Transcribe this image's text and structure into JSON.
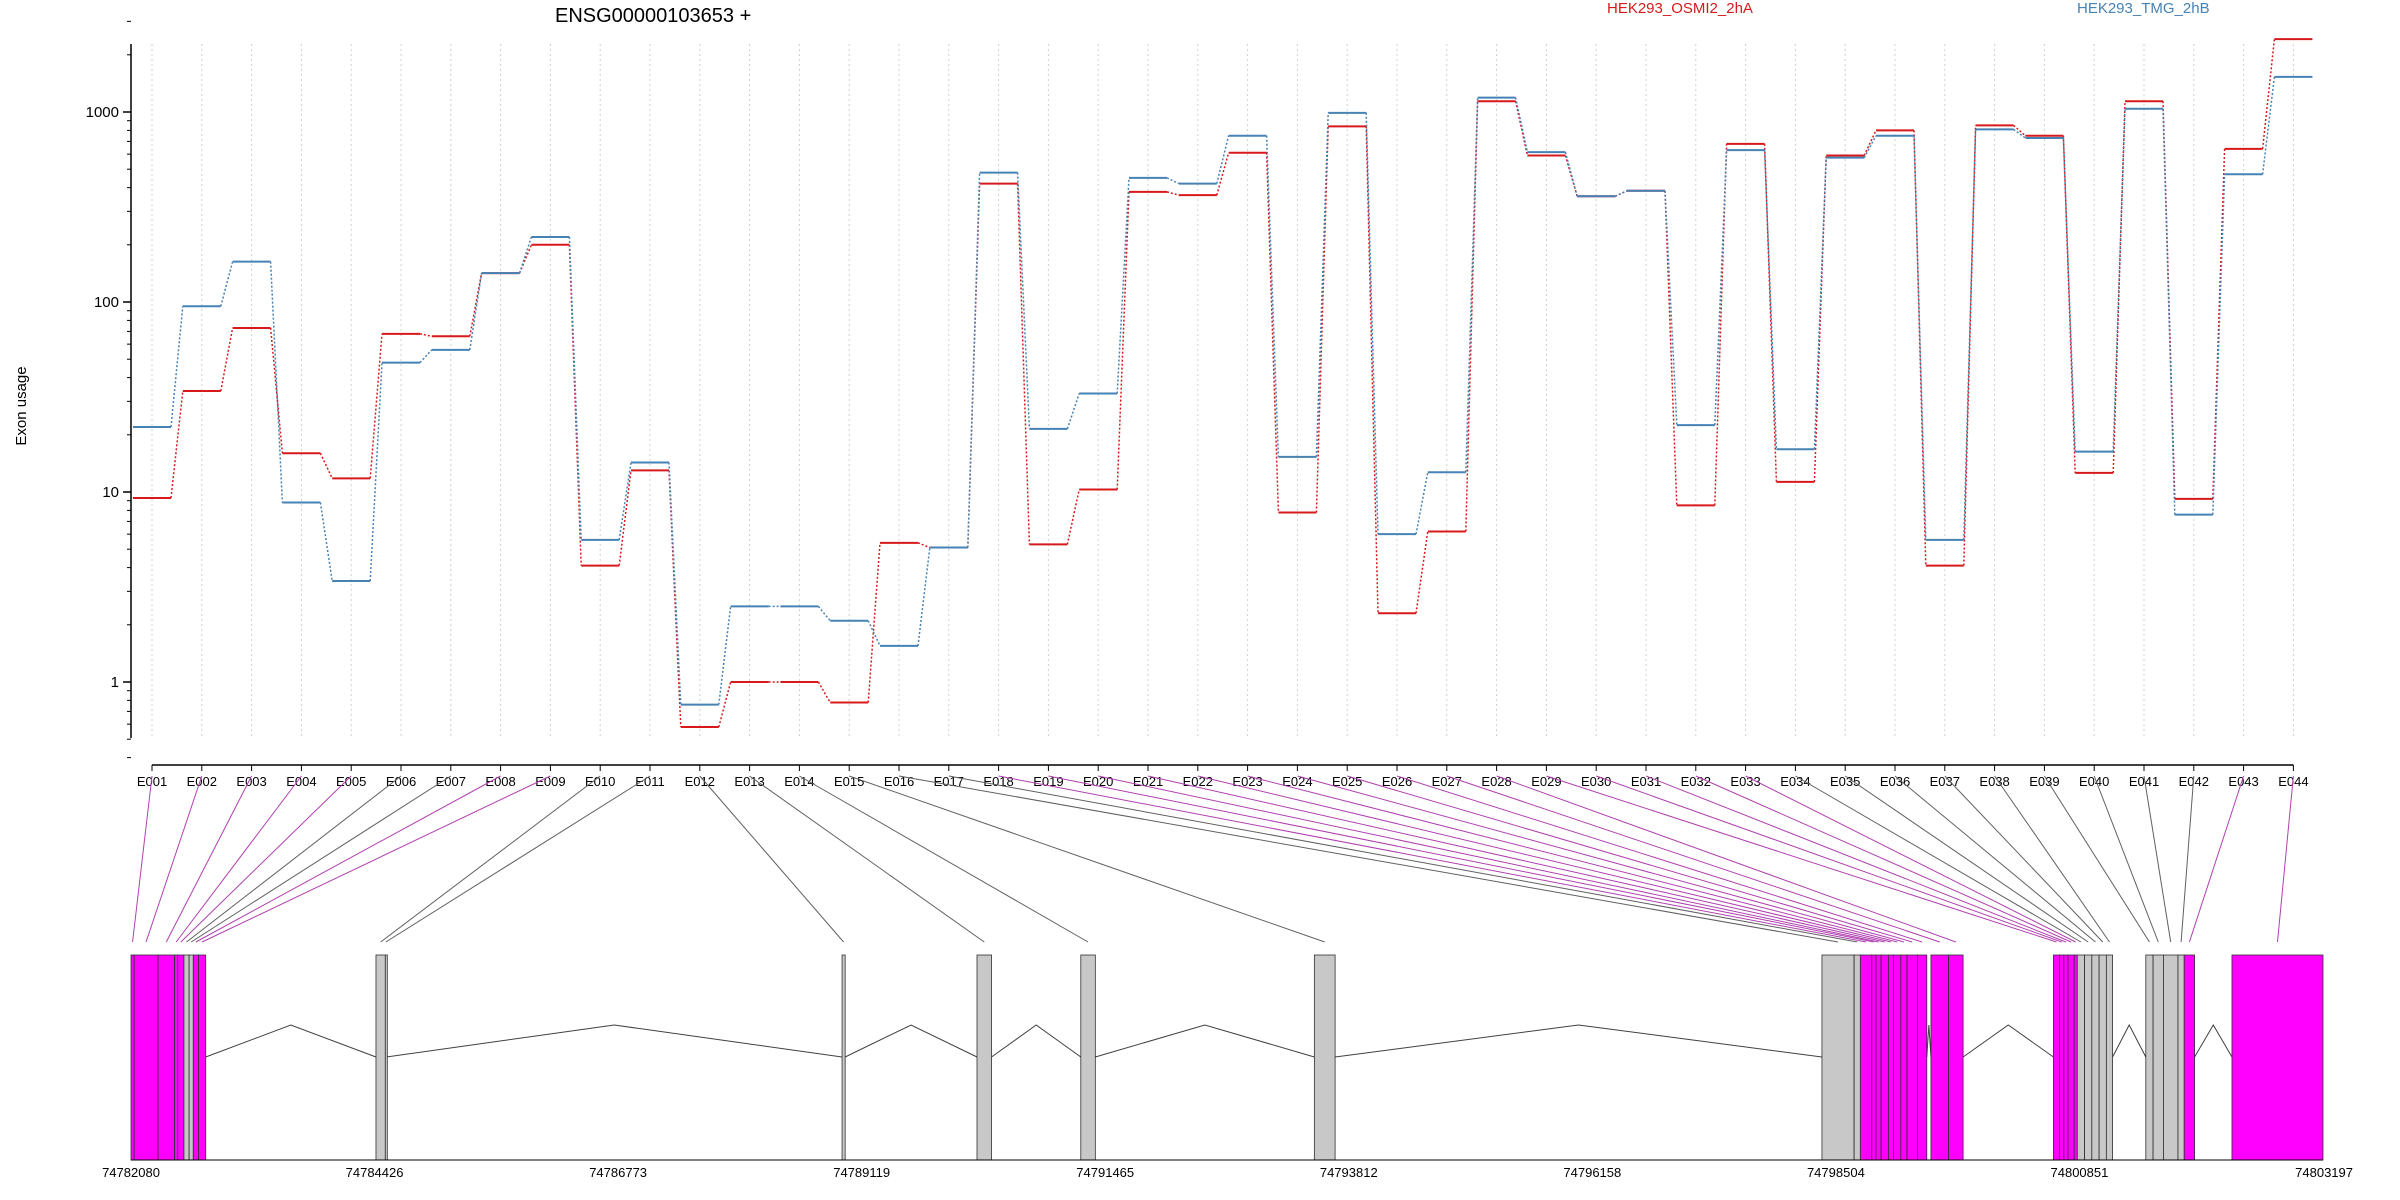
{
  "chart_data": {
    "type": "line",
    "title": "ENSG00000103653 +",
    "ylabel": "Exon usage",
    "yscale": "log",
    "ylim": [
      0.35,
      3200
    ],
    "yticks": [
      1,
      10,
      100,
      1000
    ],
    "ytick_labels": [
      "1",
      "10",
      "100",
      "1000"
    ],
    "grid": "vertical dotted",
    "legend_placement": "top",
    "categories": [
      "E001",
      "E002",
      "E003",
      "E004",
      "E005",
      "E006",
      "E007",
      "E008",
      "E009",
      "E010",
      "E011",
      "E012",
      "E013",
      "E014",
      "E015",
      "E016",
      "E017",
      "E018",
      "E019",
      "E020",
      "E021",
      "E022",
      "E023",
      "E024",
      "E025",
      "E026",
      "E027",
      "E028",
      "E029",
      "E030",
      "E031",
      "E032",
      "E033",
      "E034",
      "E035",
      "E036",
      "E037",
      "E038",
      "E039",
      "E040",
      "E041",
      "E042",
      "E043",
      "E044"
    ],
    "series": [
      {
        "name": "HEK293_OSMI2_2hA",
        "color": "#d7191c",
        "values": [
          9.3,
          34,
          73,
          16,
          11.8,
          68,
          66,
          142,
          200,
          4.1,
          13,
          0.58,
          1.0,
          1.0,
          0.78,
          5.4,
          5.1,
          420,
          5.3,
          10.3,
          380,
          365,
          610,
          7.8,
          840,
          2.3,
          6.2,
          1140,
          590,
          360,
          385,
          8.5,
          680,
          11.3,
          590,
          800,
          4.1,
          850,
          750,
          12.6,
          1140,
          9.2,
          640,
          2420
        ]
      },
      {
        "name": "HEK293_TMG_2hB",
        "color": "#4682b4",
        "values": [
          22,
          95,
          163,
          8.8,
          3.4,
          48,
          56,
          142,
          220,
          5.6,
          14.3,
          0.76,
          2.5,
          2.5,
          2.1,
          1.55,
          5.1,
          480,
          21.5,
          33,
          450,
          420,
          750,
          15.3,
          990,
          6.0,
          12.7,
          1190,
          615,
          360,
          385,
          22.5,
          630,
          16.8,
          575,
          750,
          5.6,
          810,
          730,
          16.3,
          1040,
          7.6,
          470,
          1530
        ]
      }
    ],
    "genomic_axis": {
      "tick_labels": [
        "74782080",
        "74784426",
        "74786773",
        "74789119",
        "74791465",
        "74793812",
        "74796158",
        "74798504",
        "74800851",
        "74803197"
      ],
      "range": [
        74782080,
        74803197
      ]
    },
    "exons": [
      {
        "id": "E001",
        "start": 74782080,
        "end": 74782110,
        "sig": true
      },
      {
        "id": "E002",
        "start": 74782110,
        "end": 74782340,
        "sig": true
      },
      {
        "id": "E003",
        "start": 74782340,
        "end": 74782500,
        "sig": true
      },
      {
        "id": "E004",
        "start": 74782500,
        "end": 74782530,
        "sig": true
      },
      {
        "id": "E005",
        "start": 74782530,
        "end": 74782590,
        "sig": true
      },
      {
        "id": "E006",
        "start": 74782590,
        "end": 74782640,
        "sig": false
      },
      {
        "id": "E007",
        "start": 74782640,
        "end": 74782680,
        "sig": false
      },
      {
        "id": "E008",
        "start": 74782680,
        "end": 74782730,
        "sig": true
      },
      {
        "id": "E009",
        "start": 74782730,
        "end": 74782800,
        "sig": true
      },
      {
        "id": "E010",
        "start": 74784440,
        "end": 74784530,
        "sig": false
      },
      {
        "id": "E011",
        "start": 74784530,
        "end": 74784540,
        "sig": false
      },
      {
        "id": "E012",
        "start": 74788930,
        "end": 74788960,
        "sig": false
      },
      {
        "id": "E013",
        "start": 74790230,
        "end": 74790370,
        "sig": false
      },
      {
        "id": "E014",
        "start": 74791230,
        "end": 74791370,
        "sig": false
      },
      {
        "id": "E015",
        "start": 74793480,
        "end": 74793680,
        "sig": false
      },
      {
        "id": "E016",
        "start": 74798370,
        "end": 74798680,
        "sig": false
      },
      {
        "id": "E017",
        "start": 74798680,
        "end": 74798740,
        "sig": false
      },
      {
        "id": "E018",
        "start": 74798740,
        "end": 74798850,
        "sig": true
      },
      {
        "id": "E019",
        "start": 74798850,
        "end": 74798890,
        "sig": true
      },
      {
        "id": "E020",
        "start": 74798890,
        "end": 74798940,
        "sig": true
      },
      {
        "id": "E021",
        "start": 74798940,
        "end": 74799010,
        "sig": true
      },
      {
        "id": "E022",
        "start": 74799010,
        "end": 74799060,
        "sig": true
      },
      {
        "id": "E023",
        "start": 74799060,
        "end": 74799130,
        "sig": true
      },
      {
        "id": "E024",
        "start": 74799130,
        "end": 74799190,
        "sig": true
      },
      {
        "id": "E025",
        "start": 74799190,
        "end": 74799290,
        "sig": true
      },
      {
        "id": "E026",
        "start": 74799290,
        "end": 74799380,
        "sig": true
      },
      {
        "id": "E027",
        "start": 74799420,
        "end": 74799590,
        "sig": true
      },
      {
        "id": "E028",
        "start": 74799590,
        "end": 74799730,
        "sig": true
      },
      {
        "id": "E029",
        "start": 74800600,
        "end": 74800660,
        "sig": true
      },
      {
        "id": "E030",
        "start": 74800660,
        "end": 74800700,
        "sig": true
      },
      {
        "id": "E031",
        "start": 74800700,
        "end": 74800740,
        "sig": true
      },
      {
        "id": "E032",
        "start": 74800740,
        "end": 74800800,
        "sig": true
      },
      {
        "id": "E033",
        "start": 74800800,
        "end": 74800830,
        "sig": true
      },
      {
        "id": "E034",
        "start": 74800830,
        "end": 74800900,
        "sig": false
      },
      {
        "id": "E035",
        "start": 74800900,
        "end": 74800970,
        "sig": false
      },
      {
        "id": "E036",
        "start": 74800970,
        "end": 74801040,
        "sig": false
      },
      {
        "id": "E037",
        "start": 74801040,
        "end": 74801110,
        "sig": false
      },
      {
        "id": "E038",
        "start": 74801110,
        "end": 74801170,
        "sig": false
      },
      {
        "id": "E039",
        "start": 74801490,
        "end": 74801560,
        "sig": false
      },
      {
        "id": "E040",
        "start": 74801560,
        "end": 74801660,
        "sig": false
      },
      {
        "id": "E041",
        "start": 74801660,
        "end": 74801800,
        "sig": false
      },
      {
        "id": "E042",
        "start": 74801800,
        "end": 74801860,
        "sig": false
      },
      {
        "id": "E043",
        "start": 74801860,
        "end": 74801960,
        "sig": true
      },
      {
        "id": "E044",
        "start": 74802320,
        "end": 74803197,
        "sig": true
      }
    ],
    "colors": {
      "significant_exon": "#ff00ff",
      "exon": "#c8c8c8",
      "connector_sig": "#b040b0",
      "connector": "#606060"
    }
  }
}
